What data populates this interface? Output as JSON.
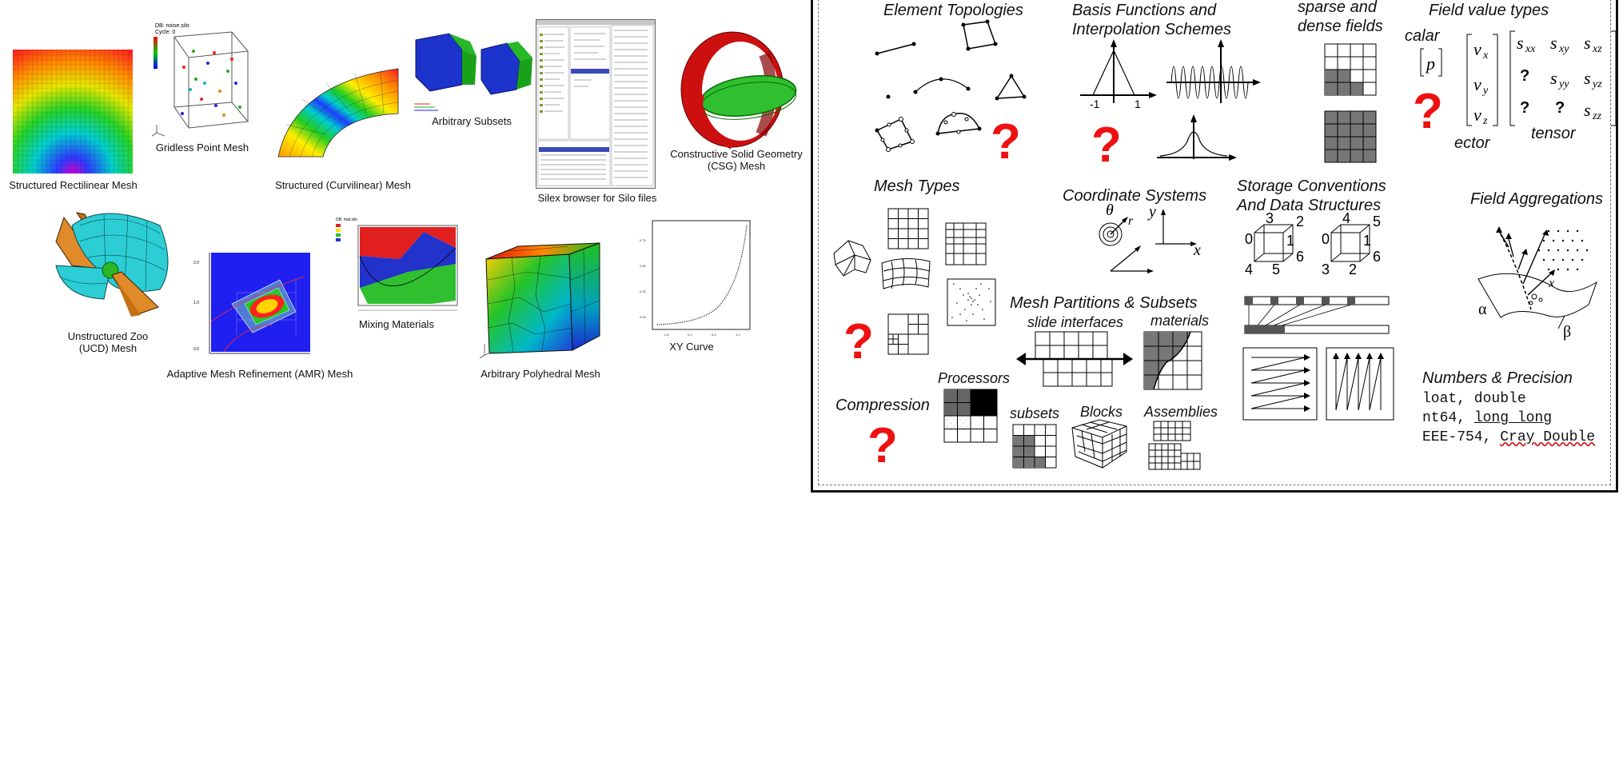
{
  "left_gallery": {
    "structured_rectilinear": "Structured Rectilinear Mesh",
    "gridless_point": "Gridless Point Mesh",
    "structured_curvilinear": "Structured (Curvilinear) Mesh",
    "arbitrary_subsets": "Arbitrary Subsets",
    "silex_browser": "Silex browser for Silo files",
    "csg_line1": "Constructive Solid Geometry",
    "csg_line2": "(CSG) Mesh",
    "ucd_line1": "Unstructured Zoo",
    "ucd_line2": "(UCD) Mesh",
    "amr": "Adaptive Mesh Refinement (AMR) Mesh",
    "mixing_materials": "Mixing Materials",
    "polyhedral": "Arbitrary Polyhedral Mesh",
    "xy_curve": "XY Curve"
  },
  "right_panel": {
    "element_topologies": "Element Topologies",
    "basis_line1": "Basis Functions and",
    "basis_line2": "Interpolation Schemes",
    "sparse_line1": "sparse and",
    "sparse_line2": "dense fields",
    "field_value_types": "Field value types",
    "scalar": "calar",
    "vector": "ector",
    "tensor": "tensor",
    "mesh_types": "Mesh Types",
    "coordinate_systems": "Coordinate Systems",
    "storage_line1": "Storage Conventions",
    "storage_line2": "And Data Structures",
    "field_aggregations": "Field Aggregations",
    "mesh_partitions": "Mesh Partitions & Subsets",
    "slide_interfaces": "slide interfaces",
    "materials": "materials",
    "processors": "Processors",
    "compression": "Compression",
    "subsets": "subsets",
    "blocks": "Blocks",
    "assemblies": "Assemblies",
    "numbers_precision": "Numbers & Precision",
    "precision_line1": "loat, double",
    "precision_line2_a": "nt64, ",
    "precision_line2_b": "long long",
    "precision_line3_a": "EEE-754, ",
    "precision_line3_b": "Cray Double",
    "question_mark": "?",
    "cube_labels_a": [
      "0",
      "3",
      "2",
      "1",
      "4",
      "5",
      "6"
    ],
    "cube_labels_b": [
      "0",
      "4",
      "5",
      "1",
      "3",
      "2",
      "6"
    ],
    "coord_theta": "θ",
    "coord_r": "r",
    "coord_y": "y",
    "coord_x": "x",
    "basis_minus_one": "-1",
    "basis_one": "1",
    "scalar_p": "p",
    "vec_x": "v",
    "vec_sub_x": "x",
    "vec_sub_y": "y",
    "vec_sub_z": "z",
    "tensor_s": "s",
    "tensor_subs": [
      "xx",
      "xy",
      "xz",
      "yy",
      "yz",
      "zz"
    ],
    "alpha": "α",
    "beta": "β",
    "agg_x": "x"
  },
  "colors": {
    "question_red": "#ee1111",
    "material_red": "#e21f1f",
    "material_green": "#2fbf2f",
    "material_blue": "#2233cc",
    "ucd_cyan": "#2ccdd4",
    "ucd_orange": "#e08a2a"
  }
}
